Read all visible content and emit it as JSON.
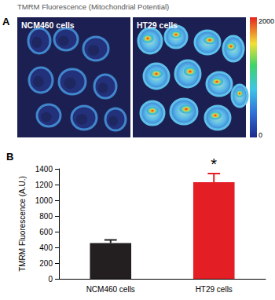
{
  "panel_a": {
    "label": "A",
    "title": "TMRM Fluorescence (Mitochondrial Potential)",
    "images": [
      {
        "label": "NCM460 cells"
      },
      {
        "label": "HT29 cells"
      }
    ],
    "colorbar": {
      "range": [
        0,
        2000
      ],
      "ticks": [
        0,
        2000
      ]
    }
  },
  "chart_data": {
    "type": "bar",
    "panel_label": "B",
    "ylabel": "TMRM Fluorescence (A.U.)",
    "categories": [
      "NCM460 cells",
      "HT29 cells"
    ],
    "values": [
      455,
      1230
    ],
    "error": [
      40,
      110
    ],
    "colors": [
      "#231f20",
      "#e31e24"
    ],
    "ylim": [
      0,
      1400
    ],
    "yticks": [
      0,
      200,
      400,
      600,
      800,
      1000,
      1200,
      1400
    ],
    "annotations": [
      {
        "text": "*",
        "category": "HT29 cells"
      }
    ]
  }
}
